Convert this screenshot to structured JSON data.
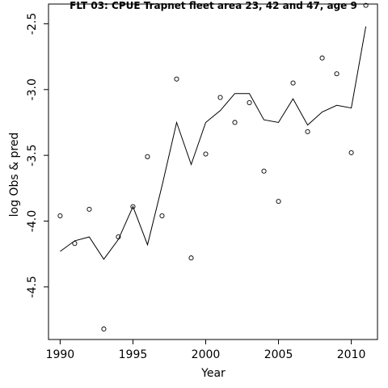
{
  "chart_data": {
    "type": "line",
    "title": "FLT 03: CPUE Trapnet fleet area 23, 42 and 47, age 9",
    "xlabel": "Year",
    "ylabel": "log Obs & pred",
    "xlim": [
      1989.2,
      2011.8
    ],
    "ylim": [
      -4.9,
      -2.35
    ],
    "x_ticks": [
      1990,
      1995,
      2000,
      2005,
      2010
    ],
    "y_ticks": [
      -4.5,
      -4.0,
      -3.5,
      -3.0,
      -2.5
    ],
    "x_tick_labels": [
      "1990",
      "1995",
      "2000",
      "2005",
      "2010"
    ],
    "y_tick_labels": [
      "-4.5",
      "-4.0",
      "-3.5",
      "-3.0",
      "-2.5"
    ],
    "grid": false,
    "series": [
      {
        "style": "points",
        "marker": "open-circle",
        "x": [
          1990,
          1991,
          1992,
          1993,
          1994,
          1995,
          1996,
          1997,
          1998,
          1999,
          2000,
          2001,
          2002,
          2003,
          2004,
          2005,
          2006,
          2007,
          2008,
          2009,
          2010,
          2011
        ],
        "y": [
          -3.96,
          -4.17,
          -3.91,
          -4.82,
          -4.12,
          -3.89,
          -3.51,
          -3.96,
          -2.92,
          -4.28,
          -3.49,
          -3.06,
          -3.25,
          -3.1,
          -3.62,
          -3.85,
          -2.95,
          -3.32,
          -2.76,
          -2.88,
          -3.48,
          -2.36
        ]
      },
      {
        "style": "line",
        "x": [
          1990,
          1991,
          1992,
          1993,
          1994,
          1995,
          1996,
          1997,
          1998,
          1999,
          2000,
          2001,
          2002,
          2003,
          2004,
          2005,
          2006,
          2007,
          2008,
          2009,
          2010,
          2011
        ],
        "y": [
          -4.23,
          -4.15,
          -4.12,
          -4.29,
          -4.14,
          -3.89,
          -4.18,
          -3.73,
          -3.25,
          -3.57,
          -3.25,
          -3.16,
          -3.03,
          -3.03,
          -3.23,
          -3.25,
          -3.07,
          -3.27,
          -3.17,
          -3.12,
          -3.14,
          -2.52
        ]
      }
    ]
  }
}
